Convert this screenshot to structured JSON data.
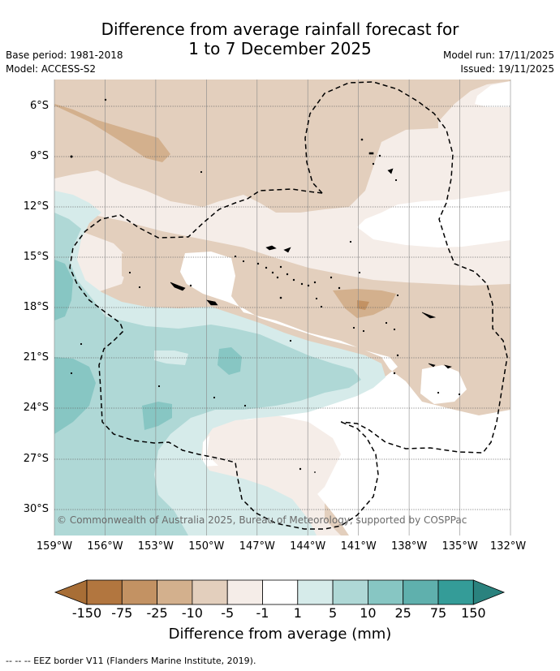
{
  "title_line1": "Difference from average rainfall forecast for",
  "title_line2": "1 to 7 December 2025",
  "base_period": "Base period: 1981-2018",
  "model": "Model: ACCESS-S2",
  "model_run": "Model run: 17/11/2025",
  "issued": "Issued: 19/11/2025",
  "copyright": "© Commonwealth of Australia 2025, Bureau of Meteorology, supported by COSPPac",
  "map": {
    "lat_ticks": [
      "6°S",
      "9°S",
      "12°S",
      "15°S",
      "18°S",
      "21°S",
      "24°S",
      "27°S",
      "30°S"
    ],
    "lon_ticks": [
      "159°W",
      "156°W",
      "153°W",
      "150°W",
      "147°W",
      "144°W",
      "141°W",
      "138°W",
      "135°W",
      "132°W"
    ],
    "lat_values": [
      -6,
      -9,
      -12,
      -15,
      -18,
      -21,
      -24,
      -27,
      -30
    ],
    "lon_values": [
      -159,
      -156,
      -153,
      -150,
      -147,
      -144,
      -141,
      -138,
      -135,
      -132
    ]
  },
  "colorbar": {
    "title": "Difference from average (mm)",
    "boundaries": [
      "-150",
      "-75",
      "-25",
      "-10",
      "-5",
      "-1",
      "1",
      "5",
      "10",
      "25",
      "75",
      "150"
    ],
    "colors": [
      "#a86e36",
      "#b2763f",
      "#c39263",
      "#d3b08d",
      "#e3cfbd",
      "#f5ede8",
      "#ffffff",
      "#d6ebea",
      "#afd8d6",
      "#87c6c3",
      "#5fb0ad",
      "#349c98",
      "#2a827e"
    ]
  },
  "footer": "--  --  -- EEZ border V11 (Flanders Marine Institute, 2019)."
}
